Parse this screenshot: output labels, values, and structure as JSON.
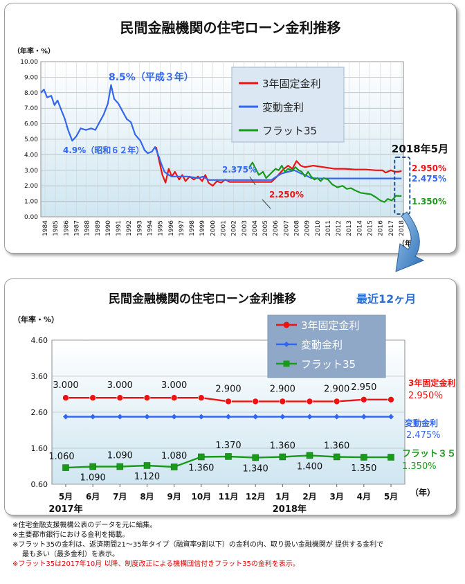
{
  "chart_data": [
    {
      "type": "line",
      "title": "民間金融機関の住宅ローン金利推移",
      "ylabel": "（年率・%）",
      "xlabel": "（年）",
      "ylim": [
        0,
        10
      ],
      "xlim": [
        1984,
        2018.6
      ],
      "yticks": [
        "0.00",
        "1.00",
        "2.00",
        "3.00",
        "4.00",
        "5.00",
        "6.00",
        "7.00",
        "8.00",
        "9.00",
        "10.00"
      ],
      "xticks": [
        "1984",
        "1985",
        "1986",
        "1987",
        "1988",
        "1989",
        "1990",
        "1991",
        "1992",
        "1993",
        "1994",
        "1995",
        "1996",
        "1997",
        "1998",
        "1999",
        "2000",
        "2001",
        "2002",
        "2003",
        "2004",
        "2005",
        "2006",
        "2007",
        "2008",
        "2009",
        "2010",
        "2011",
        "2012",
        "2013",
        "2014",
        "2015",
        "2016",
        "2017",
        "2018"
      ],
      "grid": true,
      "legend_position": "top-center",
      "series": [
        {
          "name": "3年固定金利",
          "color": "#ee1111",
          "points": [
            [
              1995.0,
              4.5
            ],
            [
              1995.3,
              3.6
            ],
            [
              1995.6,
              2.7
            ],
            [
              1995.9,
              2.2
            ],
            [
              1996.2,
              3.1
            ],
            [
              1996.5,
              2.6
            ],
            [
              1996.8,
              2.9
            ],
            [
              1997.2,
              2.4
            ],
            [
              1997.5,
              2.7
            ],
            [
              1997.8,
              2.3
            ],
            [
              1998.2,
              2.6
            ],
            [
              1998.6,
              2.4
            ],
            [
              1999.0,
              2.6
            ],
            [
              1999.4,
              2.3
            ],
            [
              1999.7,
              2.7
            ],
            [
              2000.0,
              2.2
            ],
            [
              2000.4,
              2.0
            ],
            [
              2000.8,
              2.3
            ],
            [
              2001.2,
              2.2
            ],
            [
              2001.6,
              2.4
            ],
            [
              2002.0,
              2.25
            ],
            [
              2003.0,
              2.25
            ],
            [
              2004.0,
              2.25
            ],
            [
              2005.0,
              2.25
            ],
            [
              2006.0,
              2.25
            ],
            [
              2006.4,
              2.5
            ],
            [
              2006.8,
              2.8
            ],
            [
              2007.2,
              3.1
            ],
            [
              2007.6,
              3.3
            ],
            [
              2008.0,
              3.1
            ],
            [
              2008.4,
              3.6
            ],
            [
              2008.8,
              3.3
            ],
            [
              2009.2,
              3.2
            ],
            [
              2010.0,
              3.3
            ],
            [
              2011.0,
              3.2
            ],
            [
              2012.0,
              3.1
            ],
            [
              2013.0,
              3.1
            ],
            [
              2014.0,
              3.05
            ],
            [
              2015.0,
              3.05
            ],
            [
              2016.0,
              3.0
            ],
            [
              2016.6,
              3.0
            ],
            [
              2016.9,
              2.85
            ],
            [
              2017.4,
              3.0
            ],
            [
              2017.8,
              2.9
            ],
            [
              2018.1,
              2.9
            ],
            [
              2018.42,
              2.95
            ]
          ]
        },
        {
          "name": "変動金利",
          "color": "#3366ee",
          "points": [
            [
              1984.0,
              8.0
            ],
            [
              1984.3,
              8.2
            ],
            [
              1984.6,
              7.7
            ],
            [
              1985.0,
              7.8
            ],
            [
              1985.3,
              7.2
            ],
            [
              1985.6,
              7.5
            ],
            [
              1986.0,
              6.8
            ],
            [
              1986.3,
              6.3
            ],
            [
              1986.6,
              5.6
            ],
            [
              1987.0,
              4.9
            ],
            [
              1987.4,
              5.2
            ],
            [
              1987.8,
              5.7
            ],
            [
              1988.3,
              5.6
            ],
            [
              1988.8,
              5.7
            ],
            [
              1989.2,
              5.6
            ],
            [
              1989.6,
              6.1
            ],
            [
              1990.0,
              6.6
            ],
            [
              1990.4,
              7.3
            ],
            [
              1990.7,
              8.5
            ],
            [
              1991.0,
              7.6
            ],
            [
              1991.4,
              7.3
            ],
            [
              1991.8,
              6.8
            ],
            [
              1992.2,
              6.3
            ],
            [
              1992.6,
              6.1
            ],
            [
              1993.0,
              5.3
            ],
            [
              1993.5,
              4.9
            ],
            [
              1993.9,
              4.3
            ],
            [
              1994.2,
              4.1
            ],
            [
              1994.6,
              4.2
            ],
            [
              1994.9,
              4.5
            ],
            [
              1995.2,
              4.0
            ],
            [
              1995.5,
              3.4
            ],
            [
              1995.8,
              2.9
            ],
            [
              1996.2,
              2.7
            ],
            [
              1996.5,
              2.6
            ],
            [
              1997.0,
              2.6
            ],
            [
              1998.0,
              2.6
            ],
            [
              1999.0,
              2.5
            ],
            [
              1999.5,
              2.6
            ],
            [
              2000.0,
              2.375
            ],
            [
              2001.0,
              2.375
            ],
            [
              2002.0,
              2.375
            ],
            [
              2003.0,
              2.375
            ],
            [
              2004.0,
              2.375
            ],
            [
              2005.0,
              2.375
            ],
            [
              2006.0,
              2.375
            ],
            [
              2006.5,
              2.6
            ],
            [
              2007.0,
              2.8
            ],
            [
              2007.6,
              2.9
            ],
            [
              2008.2,
              3.0
            ],
            [
              2008.8,
              2.8
            ],
            [
              2009.2,
              2.7
            ],
            [
              2009.8,
              2.5
            ],
            [
              2010.5,
              2.475
            ],
            [
              2012.0,
              2.475
            ],
            [
              2014.0,
              2.475
            ],
            [
              2016.0,
              2.475
            ],
            [
              2018.42,
              2.475
            ]
          ]
        },
        {
          "name": "フラット35",
          "color": "#1a9a1a",
          "points": [
            [
              2003.9,
              3.2
            ],
            [
              2004.2,
              3.5
            ],
            [
              2004.5,
              3.1
            ],
            [
              2004.8,
              2.7
            ],
            [
              2005.2,
              2.9
            ],
            [
              2005.5,
              2.5
            ],
            [
              2005.8,
              2.7
            ],
            [
              2006.1,
              2.9
            ],
            [
              2006.4,
              3.1
            ],
            [
              2006.7,
              3.0
            ],
            [
              2007.0,
              3.3
            ],
            [
              2007.3,
              2.9
            ],
            [
              2007.6,
              3.1
            ],
            [
              2008.0,
              3.0
            ],
            [
              2008.3,
              3.2
            ],
            [
              2008.6,
              3.0
            ],
            [
              2008.9,
              2.9
            ],
            [
              2009.2,
              2.6
            ],
            [
              2009.5,
              2.9
            ],
            [
              2009.8,
              2.6
            ],
            [
              2010.1,
              2.4
            ],
            [
              2010.4,
              2.5
            ],
            [
              2010.7,
              2.3
            ],
            [
              2011.0,
              2.5
            ],
            [
              2011.4,
              2.4
            ],
            [
              2011.8,
              2.1
            ],
            [
              2012.3,
              1.9
            ],
            [
              2012.8,
              2.0
            ],
            [
              2013.2,
              1.8
            ],
            [
              2013.6,
              1.85
            ],
            [
              2014.0,
              1.7
            ],
            [
              2014.5,
              1.55
            ],
            [
              2015.0,
              1.5
            ],
            [
              2015.5,
              1.45
            ],
            [
              2016.0,
              1.25
            ],
            [
              2016.4,
              1.05
            ],
            [
              2016.8,
              0.95
            ],
            [
              2017.1,
              1.15
            ],
            [
              2017.5,
              1.06
            ],
            [
              2017.9,
              1.36
            ],
            [
              2018.2,
              1.34
            ],
            [
              2018.42,
              1.35
            ]
          ]
        }
      ],
      "annotations": [
        {
          "text": "8.5%（平成３年）",
          "x": 1990.7,
          "y": 8.5
        },
        {
          "text": "4.9%（昭和６２年）",
          "x": 1987.0,
          "y": 4.9
        },
        {
          "text": "2.375%",
          "x": 2002.0,
          "y": 2.375
        },
        {
          "text": "2.250%",
          "x": 2005.0,
          "y": 2.25
        },
        {
          "text": "2018年5月",
          "x": 2018.42,
          "y": 4.0
        },
        {
          "text": "2.950%",
          "x": 2018.42,
          "y": 2.95
        },
        {
          "text": "2.475%",
          "x": 2018.42,
          "y": 2.475
        },
        {
          "text": "1.350%",
          "x": 2018.42,
          "y": 1.35
        }
      ]
    },
    {
      "type": "line",
      "title": "民間金融機関の住宅ローン金利推移",
      "subtitle": "最近12ヶ月",
      "ylabel": "（年率・%）",
      "xlabel": "（年）",
      "ylim": [
        0.6,
        4.6
      ],
      "yticks": [
        "0.60",
        "1.60",
        "2.60",
        "3.60",
        "4.60"
      ],
      "categories": [
        "5月",
        "6月",
        "7月",
        "8月",
        "9月",
        "10月",
        "11月",
        "12月",
        "1月",
        "2月",
        "3月",
        "4月",
        "5月"
      ],
      "year_labels": [
        {
          "text": "2017年",
          "index": 0
        },
        {
          "text": "2018年",
          "index": 8
        }
      ],
      "grid": true,
      "legend_position": "top-center",
      "series": [
        {
          "name": "3年固定金利",
          "color": "#ee1111",
          "marker": "circle",
          "values": [
            3.0,
            3.0,
            3.0,
            3.0,
            3.0,
            3.0,
            2.9,
            2.9,
            2.9,
            2.9,
            2.9,
            2.95,
            2.95
          ],
          "labels": [
            "3.000",
            "",
            "3.000",
            "",
            "3.000",
            "",
            "2.900",
            "",
            "2.900",
            "",
            "2.900",
            "2.950",
            ""
          ]
        },
        {
          "name": "変動金利",
          "color": "#3366ee",
          "marker": "diamond",
          "values": [
            2.475,
            2.475,
            2.475,
            2.475,
            2.475,
            2.475,
            2.475,
            2.475,
            2.475,
            2.475,
            2.475,
            2.475,
            2.475
          ]
        },
        {
          "name": "フラット35",
          "color": "#1a9a1a",
          "marker": "square",
          "values": [
            1.06,
            1.09,
            1.09,
            1.12,
            1.08,
            1.36,
            1.37,
            1.34,
            1.36,
            1.4,
            1.36,
            1.35,
            1.35
          ],
          "labels": [
            "1.060",
            "1.090",
            "1.090",
            "1.120",
            "1.080",
            "1.360",
            "1.370",
            "1.340",
            "1.360",
            "1.400",
            "1.360",
            "1.350",
            ""
          ]
        }
      ],
      "end_labels": [
        {
          "series": "3年固定金利",
          "name": "3年固定金利",
          "value": "2.950％"
        },
        {
          "series": "変動金利",
          "name": "変動金利",
          "value": "2.475%"
        },
        {
          "series": "フラット35",
          "name": "フラット３５",
          "value": "1.350%"
        }
      ]
    }
  ],
  "notes": [
    "※住宅金融支援機構公表のデータを元に編集。",
    "※主要都市銀行における金利を掲載。",
    "※フラット35の金利は、返済期間21～35年タイプ（融資率9割以下）の金利の内、取り扱い金融機関が 提供する金利で",
    "最も多い（最多金利）を表示。",
    "※フラット35は2017年10月 以降、制度改正による機構団信付きフラット35の金利を表示。"
  ]
}
